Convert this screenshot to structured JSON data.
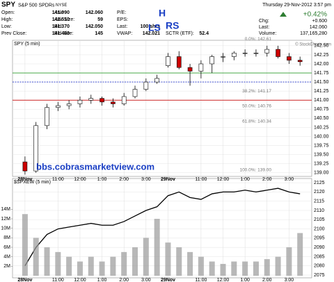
{
  "quote": {
    "symbol": "SPY",
    "name": "S&P 500 SPDRs",
    "exchange": "NYSE",
    "date": "Thursday  29-Nov-2012  3:57 pm",
    "change_pct": "+0.42%",
    "fields": [
      [
        "Open:",
        "141.990"
      ],
      [
        "High:",
        "142.510"
      ],
      [
        "Low:",
        "141.370"
      ],
      [
        "Prev Close:",
        "141.460"
      ],
      [
        "Ask:",
        "142.060"
      ],
      [
        "Ask Size:",
        "59"
      ],
      [
        "Bid:",
        "142.050"
      ],
      [
        "Bid Size:",
        "145"
      ],
      [
        "P/E:",
        ""
      ],
      [
        "EPS:",
        ""
      ],
      [
        "Last:",
        "100 shrs"
      ],
      [
        "VWAP:",
        "142.021"
      ],
      [
        "SCTR (ETF):",
        "52.4"
      ],
      [
        "Chg:",
        "+0.600"
      ],
      [
        "Last:",
        "142.060"
      ],
      [
        "Volume:",
        "137,165,280"
      ]
    ],
    "credit": "© StockCharts.com"
  },
  "chart_data": [
    {
      "type": "candlestick",
      "title": "SPY (5 min)",
      "annotations": [
        "H",
        "LS",
        "RS",
        "bbs.cobrasmarketview.com"
      ],
      "x": [
        0,
        6,
        12,
        18,
        24,
        30,
        36,
        42,
        48,
        54,
        60,
        66,
        72,
        78,
        84,
        90,
        96,
        102,
        108,
        114,
        120,
        126,
        132,
        138,
        144,
        150
      ],
      "open": [
        139.3,
        139.05,
        140.3,
        140.8,
        140.85,
        140.9,
        141.0,
        141.05,
        140.95,
        140.9,
        141.1,
        141.3,
        141.5,
        141.95,
        142.2,
        141.9,
        141.8,
        142.0,
        142.2,
        142.2,
        142.3,
        142.3,
        142.3,
        142.4,
        142.2,
        142.1
      ],
      "high": [
        139.45,
        140.4,
        140.9,
        140.95,
        141.0,
        141.1,
        141.15,
        141.1,
        141.05,
        141.2,
        141.4,
        141.6,
        141.7,
        142.3,
        142.35,
        142.0,
        142.1,
        142.25,
        142.3,
        142.35,
        142.4,
        142.4,
        142.5,
        142.5,
        142.3,
        142.2
      ],
      "low": [
        138.95,
        139.0,
        140.2,
        140.7,
        140.75,
        140.8,
        140.9,
        140.85,
        140.8,
        140.85,
        141.05,
        141.25,
        141.45,
        141.9,
        141.85,
        141.4,
        141.6,
        141.75,
        142.05,
        142.1,
        142.2,
        142.2,
        142.2,
        142.15,
        142.0,
        141.95
      ],
      "close": [
        139.05,
        140.3,
        140.8,
        140.85,
        140.9,
        141.0,
        141.05,
        140.95,
        140.9,
        141.1,
        141.3,
        141.5,
        141.6,
        142.2,
        141.9,
        141.8,
        142.0,
        142.2,
        142.2,
        142.3,
        142.3,
        142.3,
        142.4,
        142.2,
        142.1,
        142.06
      ],
      "up_color": "#ffffff",
      "down_color": "#cc0000",
      "levels": [
        {
          "value": 141.75,
          "color": "#2e9e2e",
          "dash": false
        },
        {
          "value": 141.5,
          "color": "#2233cc",
          "dash": true
        },
        {
          "value": 141.0,
          "color": "#cc2222",
          "dash": false
        }
      ],
      "fib": [
        {
          "label": "0.0%: 142.61",
          "value": 142.61
        },
        {
          "label": "38.2%: 141.17",
          "value": 141.17
        },
        {
          "label": "50.0%: 140.76",
          "value": 140.76
        },
        {
          "label": "61.8%: 140.34",
          "value": 140.34
        },
        {
          "label": "100.0%: 139.00",
          "value": 139.0
        }
      ],
      "xlim": [
        -3,
        156
      ],
      "xticks": [
        {
          "value": 0,
          "label": "28Nov"
        },
        {
          "value": 18,
          "label": "11:00"
        },
        {
          "value": 30,
          "label": "12:00"
        },
        {
          "value": 42,
          "label": "1:00"
        },
        {
          "value": 54,
          "label": "2:00"
        },
        {
          "value": 66,
          "label": "3:00"
        },
        {
          "value": 78,
          "label": "29Nov"
        },
        {
          "value": 96,
          "label": "11:00"
        },
        {
          "value": 108,
          "label": "12:00"
        },
        {
          "value": 120,
          "label": "1:00"
        },
        {
          "value": 132,
          "label": "2:00"
        },
        {
          "value": 144,
          "label": "3:00"
        }
      ],
      "ylim": [
        138.9,
        142.65
      ],
      "yticks": [
        {
          "value": 142.5,
          "label": "142.50"
        },
        {
          "value": 142.25,
          "label": "142.25"
        },
        {
          "value": 142,
          "label": "142.00"
        },
        {
          "value": 141.75,
          "label": "141.75"
        },
        {
          "value": 141.5,
          "label": "141.50"
        },
        {
          "value": 141.25,
          "label": "141.25"
        },
        {
          "value": 141,
          "label": "141.00"
        },
        {
          "value": 140.75,
          "label": "140.75"
        },
        {
          "value": 140.5,
          "label": "140.50"
        },
        {
          "value": 140.25,
          "label": "140.25"
        },
        {
          "value": 140,
          "label": "140.00"
        },
        {
          "value": 139.75,
          "label": "139.75"
        },
        {
          "value": 139.5,
          "label": "139.50"
        },
        {
          "value": 139.25,
          "label": "139.25"
        },
        {
          "value": 139,
          "label": "139.00"
        }
      ],
      "grid": true
    },
    {
      "type": "line",
      "title": "$SPXEW (5 min)",
      "x": [
        0,
        6,
        12,
        18,
        24,
        30,
        36,
        42,
        48,
        54,
        60,
        66,
        72,
        78,
        84,
        90,
        96,
        102,
        108,
        114,
        120,
        126,
        132,
        138,
        144,
        150
      ],
      "series": [
        {
          "name": "$SPXEW",
          "color": "#000000",
          "values": [
            2080,
            2090,
            2097,
            2100,
            2101,
            2102,
            2103,
            2102,
            2102,
            2104,
            2107,
            2110,
            2112,
            2118,
            2120,
            2117,
            2116,
            2119,
            2120,
            2120,
            2121,
            2120,
            2121,
            2122,
            2120,
            2119
          ]
        },
        {
          "name": "Volume",
          "type": "bar",
          "axis": "y2",
          "color": "#9a9a9a",
          "values": [
            13000000,
            8000000,
            6000000,
            5000000,
            4000000,
            3000000,
            4000000,
            3000000,
            4000000,
            5000000,
            6000000,
            8000000,
            12000000,
            7000000,
            6000000,
            5000000,
            4000000,
            3000000,
            2500000,
            3000000,
            3000000,
            3000000,
            3500000,
            4000000,
            6000000,
            9000000
          ]
        }
      ],
      "xlim": [
        -3,
        156
      ],
      "xticks": [
        {
          "value": 0,
          "label": "28Nov"
        },
        {
          "value": 18,
          "label": "11:00"
        },
        {
          "value": 30,
          "label": "12:00"
        },
        {
          "value": 42,
          "label": "1:00"
        },
        {
          "value": 54,
          "label": "2:00"
        },
        {
          "value": 66,
          "label": "3:00"
        },
        {
          "value": 78,
          "label": "29Nov"
        },
        {
          "value": 96,
          "label": "11:00"
        },
        {
          "value": 108,
          "label": "12:00"
        },
        {
          "value": 120,
          "label": "1:00"
        },
        {
          "value": 132,
          "label": "2:00"
        },
        {
          "value": 144,
          "label": "3:00"
        }
      ],
      "ylim": [
        2073.5,
        2127.3
      ],
      "yticks": [
        2125,
        2120,
        2115,
        2110,
        2105,
        2100,
        2095,
        2090,
        2085,
        2080,
        2075
      ],
      "y2lim": [
        0,
        20500000
      ],
      "y2ticks": [
        {
          "value": 14000000,
          "label": "14M"
        },
        {
          "value": 12000000,
          "label": "12M"
        },
        {
          "value": 10000000,
          "label": "10M"
        },
        {
          "value": 8000000,
          "label": "8M"
        },
        {
          "value": 6000000,
          "label": "6M"
        },
        {
          "value": 4000000,
          "label": "4M"
        },
        {
          "value": 2000000,
          "label": "2M"
        }
      ],
      "grid": true
    }
  ]
}
